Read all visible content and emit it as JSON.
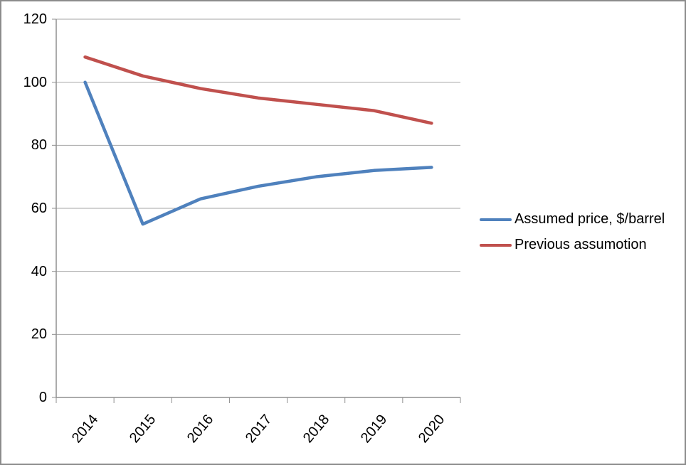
{
  "chart_data": {
    "type": "line",
    "categories": [
      "2014",
      "2015",
      "2016",
      "2017",
      "2018",
      "2019",
      "2020"
    ],
    "series": [
      {
        "name": "Assumed price, $/barrel",
        "color": "#4F81BD",
        "values": [
          100,
          55,
          63,
          67,
          70,
          72,
          73
        ]
      },
      {
        "name": "Previous assumotion",
        "color": "#C0504D",
        "values": [
          108,
          102,
          98,
          95,
          93,
          91,
          87
        ]
      }
    ],
    "title": "",
    "xlabel": "",
    "ylabel": "",
    "ylim": [
      0,
      120
    ],
    "yticks": [
      0,
      20,
      40,
      60,
      80,
      100,
      120
    ],
    "grid": "horizontal",
    "legend_position": "right"
  },
  "colors": {
    "axis": "#8f8f8f",
    "gridline": "#a6a6a6",
    "frame_border": "#8c8c8c",
    "background": "#ffffff",
    "text": "#000000"
  }
}
